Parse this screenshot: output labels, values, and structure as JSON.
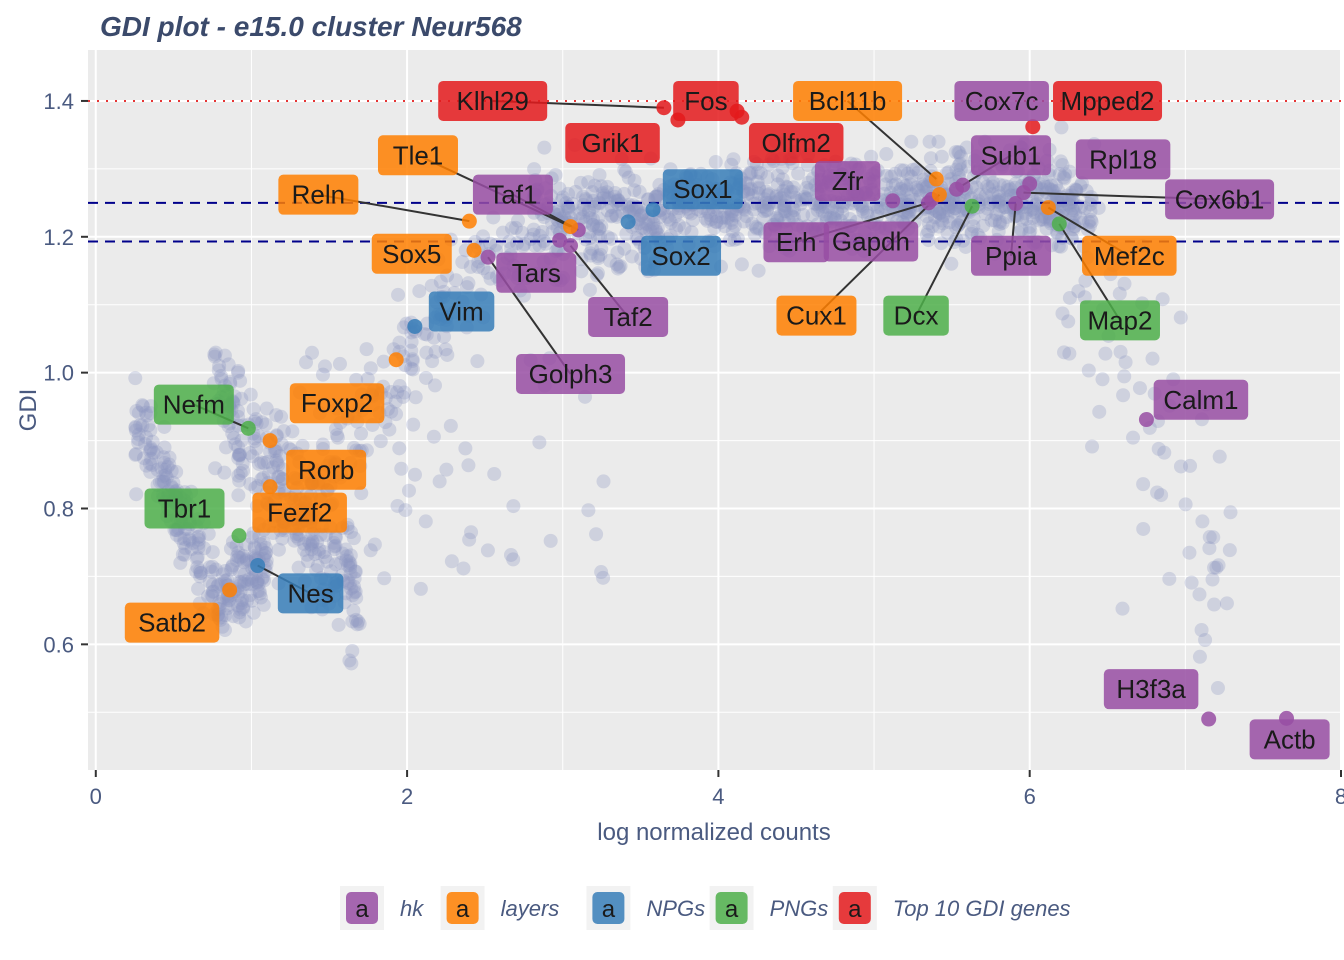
{
  "chart_data": {
    "type": "scatter",
    "title": "GDI plot - e15.0 cluster Neur568",
    "xlabel": "log normalized counts",
    "ylabel": "GDI",
    "xlim": [
      -0.05,
      8
    ],
    "ylim": [
      0.415,
      1.475
    ],
    "xticks": [
      0,
      2,
      4,
      6,
      8
    ],
    "yticks": [
      0.6,
      0.8,
      1.0,
      1.2,
      1.4
    ],
    "xtick_labels": [
      "0",
      "2",
      "4",
      "6",
      "8"
    ],
    "ytick_labels": [
      "0.6",
      "0.8",
      "1.0",
      "1.2",
      "1.4"
    ],
    "grid": true,
    "legend_position": "bottom",
    "reference_lines": [
      {
        "style": "dotted",
        "color": "#e53535",
        "y": 1.4
      },
      {
        "style": "dashed",
        "color": "#00008b",
        "y": 1.25
      },
      {
        "style": "dashed",
        "color": "#00008b",
        "y": 1.193
      }
    ],
    "background_points_color": "#8a96c0",
    "categories": [
      {
        "key": "hk",
        "name": "hk",
        "color": "#984ea3"
      },
      {
        "key": "layers",
        "name": "layers",
        "color": "#ff7f00"
      },
      {
        "key": "NPGs",
        "name": "NPGs",
        "color": "#377eb8"
      },
      {
        "key": "PNGs",
        "name": "PNGs",
        "color": "#4daf4a"
      },
      {
        "key": "top10",
        "name": "Top 10 GDI genes",
        "color": "#e41a1c"
      }
    ],
    "legend_glyph": "a",
    "highlighted_genes": [
      {
        "gene": "Klhl29",
        "cat": "top10",
        "x": 3.65,
        "y": 1.39
      },
      {
        "gene": "Fos",
        "cat": "top10",
        "x": 3.74,
        "y": 1.372
      },
      {
        "gene": "Grik1",
        "cat": "top10",
        "x": 4.12,
        "y": 1.385
      },
      {
        "gene": "Olfm2",
        "cat": "top10",
        "x": 4.15,
        "y": 1.376
      },
      {
        "gene": "Mpped2",
        "cat": "top10",
        "x": 6.02,
        "y": 1.362
      },
      {
        "gene": "Cox7c",
        "cat": "hk",
        "x": 5.53,
        "y": 1.27
      },
      {
        "gene": "Sub1",
        "cat": "hk",
        "x": 5.57,
        "y": 1.276
      },
      {
        "gene": "Rpl18",
        "cat": "hk",
        "x": 6.0,
        "y": 1.278
      },
      {
        "gene": "Cox6b1",
        "cat": "hk",
        "x": 5.96,
        "y": 1.265
      },
      {
        "gene": "Zfr",
        "cat": "hk",
        "x": 5.12,
        "y": 1.253
      },
      {
        "gene": "Erh",
        "cat": "hk",
        "x": 5.35,
        "y": 1.25
      },
      {
        "gene": "Gapdh",
        "cat": "hk",
        "x": 5.37,
        "y": 1.255
      },
      {
        "gene": "Ppia",
        "cat": "hk",
        "x": 5.91,
        "y": 1.249
      },
      {
        "gene": "Taf1",
        "cat": "hk",
        "x": 3.1,
        "y": 1.21
      },
      {
        "gene": "Tars",
        "cat": "hk",
        "x": 2.98,
        "y": 1.195
      },
      {
        "gene": "Taf2",
        "cat": "hk",
        "x": 3.05,
        "y": 1.187
      },
      {
        "gene": "Golph3",
        "cat": "hk",
        "x": 2.52,
        "y": 1.17
      },
      {
        "gene": "Calm1",
        "cat": "hk",
        "x": 6.75,
        "y": 0.931
      },
      {
        "gene": "H3f3a",
        "cat": "hk",
        "x": 7.15,
        "y": 0.49
      },
      {
        "gene": "Actb",
        "cat": "hk",
        "x": 7.65,
        "y": 0.491
      },
      {
        "gene": "Bcl11b",
        "cat": "layers",
        "x": 5.4,
        "y": 1.285
      },
      {
        "gene": "Cux1",
        "cat": "layers",
        "x": 5.42,
        "y": 1.262
      },
      {
        "gene": "Mef2c",
        "cat": "layers",
        "x": 6.12,
        "y": 1.243
      },
      {
        "gene": "Tle1",
        "cat": "layers",
        "x": 3.05,
        "y": 1.215
      },
      {
        "gene": "Reln",
        "cat": "layers",
        "x": 2.4,
        "y": 1.223
      },
      {
        "gene": "Sox5",
        "cat": "layers",
        "x": 2.43,
        "y": 1.18
      },
      {
        "gene": "Foxp2",
        "cat": "layers",
        "x": 1.93,
        "y": 1.019
      },
      {
        "gene": "Rorb",
        "cat": "layers",
        "x": 1.12,
        "y": 0.9
      },
      {
        "gene": "Fezf2",
        "cat": "layers",
        "x": 1.12,
        "y": 0.832
      },
      {
        "gene": "Satb2",
        "cat": "layers",
        "x": 0.86,
        "y": 0.68
      },
      {
        "gene": "Sox1",
        "cat": "NPGs",
        "x": 3.58,
        "y": 1.24
      },
      {
        "gene": "Sox2",
        "cat": "NPGs",
        "x": 3.42,
        "y": 1.222
      },
      {
        "gene": "Vim",
        "cat": "NPGs",
        "x": 2.05,
        "y": 1.068
      },
      {
        "gene": "Nes",
        "cat": "NPGs",
        "x": 1.04,
        "y": 0.716
      },
      {
        "gene": "Dcx",
        "cat": "PNGs",
        "x": 5.63,
        "y": 1.245
      },
      {
        "gene": "Map2",
        "cat": "PNGs",
        "x": 6.19,
        "y": 1.219
      },
      {
        "gene": "Nefm",
        "cat": "PNGs",
        "x": 0.98,
        "y": 0.918
      },
      {
        "gene": "Tbr1",
        "cat": "PNGs",
        "x": 0.92,
        "y": 0.76
      }
    ],
    "labels": [
      {
        "gene": "Klhl29",
        "cat": "top10",
        "x": 2.55,
        "y": 1.4,
        "lx": 3.65,
        "ly": 1.39
      },
      {
        "gene": "Fos",
        "cat": "top10",
        "x": 3.92,
        "y": 1.4
      },
      {
        "gene": "Mpped2",
        "cat": "top10",
        "x": 6.5,
        "y": 1.4
      },
      {
        "gene": "Grik1",
        "cat": "top10",
        "x": 3.32,
        "y": 1.338
      },
      {
        "gene": "Olfm2",
        "cat": "top10",
        "x": 4.5,
        "y": 1.338
      },
      {
        "gene": "Bcl11b",
        "cat": "layers",
        "x": 4.83,
        "y": 1.4,
        "lx": 5.4,
        "ly": 1.285
      },
      {
        "gene": "Cox7c",
        "cat": "hk",
        "x": 5.82,
        "y": 1.4
      },
      {
        "gene": "Tle1",
        "cat": "layers",
        "x": 2.07,
        "y": 1.32,
        "lx": 3.05,
        "ly": 1.215
      },
      {
        "gene": "Sub1",
        "cat": "hk",
        "x": 5.88,
        "y": 1.32,
        "lx": 5.57,
        "ly": 1.276
      },
      {
        "gene": "Rpl18",
        "cat": "hk",
        "x": 6.6,
        "y": 1.314
      },
      {
        "gene": "Zfr",
        "cat": "hk",
        "x": 4.83,
        "y": 1.282
      },
      {
        "gene": "Reln",
        "cat": "layers",
        "x": 1.43,
        "y": 1.262,
        "lx": 2.4,
        "ly": 1.223
      },
      {
        "gene": "Taf1",
        "cat": "hk",
        "x": 2.68,
        "y": 1.262,
        "lx": 3.1,
        "ly": 1.21
      },
      {
        "gene": "Sox1",
        "cat": "NPGs",
        "x": 3.9,
        "y": 1.27
      },
      {
        "gene": "Cox6b1",
        "cat": "hk",
        "x": 7.22,
        "y": 1.255,
        "lx": 5.96,
        "ly": 1.265
      },
      {
        "gene": "Sox5",
        "cat": "layers",
        "x": 2.03,
        "y": 1.175
      },
      {
        "gene": "Sox2",
        "cat": "NPGs",
        "x": 3.76,
        "y": 1.172
      },
      {
        "gene": "Erh",
        "cat": "hk",
        "x": 4.5,
        "y": 1.192,
        "lx": 5.35,
        "ly": 1.25
      },
      {
        "gene": "Gapdh",
        "cat": "hk",
        "x": 4.98,
        "y": 1.193
      },
      {
        "gene": "Ppia",
        "cat": "hk",
        "x": 5.88,
        "y": 1.172,
        "lx": 5.91,
        "ly": 1.249
      },
      {
        "gene": "Mef2c",
        "cat": "layers",
        "x": 6.64,
        "y": 1.172,
        "lx": 6.12,
        "ly": 1.243
      },
      {
        "gene": "Tars",
        "cat": "hk",
        "x": 2.83,
        "y": 1.147
      },
      {
        "gene": "Cux1",
        "cat": "layers",
        "x": 4.63,
        "y": 1.084,
        "lx": 5.42,
        "ly": 1.262
      },
      {
        "gene": "Dcx",
        "cat": "PNGs",
        "x": 5.27,
        "y": 1.084,
        "lx": 5.63,
        "ly": 1.245
      },
      {
        "gene": "Taf2",
        "cat": "hk",
        "x": 3.42,
        "y": 1.082,
        "lx": 3.05,
        "ly": 1.187
      },
      {
        "gene": "Vim",
        "cat": "NPGs",
        "x": 2.35,
        "y": 1.09
      },
      {
        "gene": "Map2",
        "cat": "PNGs",
        "x": 6.58,
        "y": 1.077,
        "lx": 6.19,
        "ly": 1.219
      },
      {
        "gene": "Golph3",
        "cat": "hk",
        "x": 3.05,
        "y": 0.998,
        "lx": 2.52,
        "ly": 1.17
      },
      {
        "gene": "Calm1",
        "cat": "hk",
        "x": 7.1,
        "y": 0.96
      },
      {
        "gene": "Foxp2",
        "cat": "layers",
        "x": 1.55,
        "y": 0.955
      },
      {
        "gene": "Nefm",
        "cat": "PNGs",
        "x": 0.63,
        "y": 0.953,
        "lx": 0.98,
        "ly": 0.918
      },
      {
        "gene": "Rorb",
        "cat": "layers",
        "x": 1.48,
        "y": 0.857
      },
      {
        "gene": "Tbr1",
        "cat": "PNGs",
        "x": 0.57,
        "y": 0.8
      },
      {
        "gene": "Fezf2",
        "cat": "layers",
        "x": 1.31,
        "y": 0.794
      },
      {
        "gene": "Nes",
        "cat": "NPGs",
        "x": 1.38,
        "y": 0.675,
        "lx": 1.04,
        "ly": 0.716
      },
      {
        "gene": "Satb2",
        "cat": "layers",
        "x": 0.49,
        "y": 0.632
      },
      {
        "gene": "H3f3a",
        "cat": "hk",
        "x": 6.78,
        "y": 0.534
      },
      {
        "gene": "Actb",
        "cat": "hk",
        "x": 7.67,
        "y": 0.46
      }
    ]
  }
}
